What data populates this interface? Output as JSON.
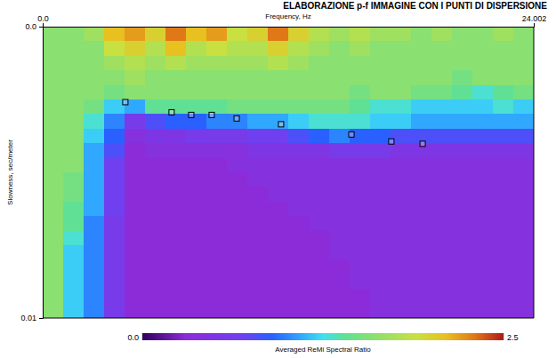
{
  "chart_data": {
    "type": "heatmap",
    "title": "ELABORAZIONE p-f IMMAGINE CON I PUNTI DI DISPERSIONE",
    "x_label": "Frequency, Hz",
    "y_label": "Slowness, sec/meter",
    "xlim": [
      0,
      24.002
    ],
    "ylim": [
      0,
      0.01
    ],
    "xticks": [
      {
        "value": 0,
        "label": "0.0"
      },
      24.002
    ],
    "yticks": [
      {
        "value": 0,
        "label": "0.0"
      },
      0.01
    ],
    "heatmap": {
      "x_edges": [
        0,
        1,
        2,
        3,
        4,
        5,
        6,
        7,
        8,
        9,
        10,
        11,
        12,
        13,
        14,
        15,
        16,
        17,
        18,
        19,
        20,
        21,
        22,
        23,
        24.002
      ],
      "y_edges": [
        0,
        0.0005,
        0.001,
        0.0015,
        0.002,
        0.0025,
        0.003,
        0.0035,
        0.004,
        0.0045,
        0.005,
        0.0055,
        0.006,
        0.0065,
        0.007,
        0.0075,
        0.008,
        0.0085,
        0.009,
        0.0095,
        0.01
      ],
      "values": [
        [
          1.6,
          1.6,
          1.7,
          2.1,
          2.2,
          2.0,
          2.3,
          2.1,
          2.2,
          1.9,
          2.0,
          2.3,
          2.0,
          1.8,
          1.7,
          1.8,
          1.7,
          1.7,
          1.6,
          1.7,
          1.6,
          1.6,
          1.7,
          1.6
        ],
        [
          1.6,
          1.6,
          1.6,
          1.9,
          2.0,
          1.8,
          2.1,
          1.8,
          1.9,
          1.8,
          1.8,
          2.0,
          1.8,
          1.7,
          1.6,
          1.7,
          1.6,
          1.6,
          1.6,
          1.6,
          1.6,
          1.6,
          1.6,
          1.6
        ],
        [
          1.6,
          1.6,
          1.6,
          1.7,
          1.8,
          1.7,
          1.8,
          1.7,
          1.7,
          1.7,
          1.7,
          1.8,
          1.7,
          1.6,
          1.6,
          1.6,
          1.6,
          1.6,
          1.6,
          1.6,
          1.6,
          1.6,
          1.6,
          1.6
        ],
        [
          1.6,
          1.6,
          1.6,
          1.6,
          1.7,
          1.6,
          1.6,
          1.6,
          1.6,
          1.6,
          1.6,
          1.6,
          1.6,
          1.6,
          1.6,
          1.6,
          1.6,
          1.6,
          1.6,
          1.6,
          1.5,
          1.6,
          1.6,
          1.6
        ],
        [
          1.6,
          1.6,
          1.6,
          1.5,
          1.6,
          1.6,
          1.6,
          1.6,
          1.6,
          1.6,
          1.6,
          1.6,
          1.6,
          1.6,
          1.6,
          1.5,
          1.6,
          1.6,
          1.5,
          1.5,
          1.4,
          1.3,
          1.4,
          1.5
        ],
        [
          1.6,
          1.6,
          1.5,
          1.2,
          1.1,
          1.4,
          1.4,
          1.4,
          1.4,
          1.5,
          1.5,
          1.5,
          1.5,
          1.5,
          1.5,
          1.4,
          1.3,
          1.3,
          1.2,
          1.2,
          1.2,
          1.2,
          1.3,
          1.2
        ],
        [
          1.6,
          1.6,
          1.3,
          1.0,
          0.6,
          0.8,
          0.9,
          0.9,
          1.0,
          1.0,
          1.1,
          1.1,
          1.2,
          1.3,
          1.3,
          1.3,
          1.2,
          1.2,
          1.1,
          1.1,
          1.1,
          1.1,
          1.1,
          1.1
        ],
        [
          1.6,
          1.6,
          1.2,
          0.9,
          0.4,
          0.5,
          0.5,
          0.6,
          0.6,
          0.6,
          0.7,
          0.7,
          0.8,
          0.9,
          1.0,
          0.9,
          0.9,
          0.8,
          0.8,
          0.8,
          0.8,
          0.8,
          0.8,
          0.8
        ],
        [
          1.6,
          1.6,
          1.1,
          0.8,
          0.3,
          0.4,
          0.4,
          0.4,
          0.4,
          0.4,
          0.5,
          0.5,
          0.5,
          0.5,
          0.6,
          0.6,
          0.6,
          0.5,
          0.5,
          0.5,
          0.5,
          0.5,
          0.5,
          0.5
        ],
        [
          1.6,
          1.6,
          1.1,
          0.7,
          0.3,
          0.3,
          0.3,
          0.3,
          0.3,
          0.4,
          0.4,
          0.4,
          0.4,
          0.4,
          0.4,
          0.4,
          0.4,
          0.4,
          0.4,
          0.4,
          0.4,
          0.4,
          0.4,
          0.4
        ],
        [
          1.6,
          1.5,
          1.1,
          0.7,
          0.3,
          0.3,
          0.3,
          0.3,
          0.3,
          0.3,
          0.4,
          0.4,
          0.4,
          0.4,
          0.4,
          0.4,
          0.4,
          0.4,
          0.4,
          0.4,
          0.4,
          0.4,
          0.4,
          0.4
        ],
        [
          1.6,
          1.5,
          1.1,
          0.7,
          0.3,
          0.3,
          0.3,
          0.3,
          0.3,
          0.3,
          0.3,
          0.4,
          0.4,
          0.4,
          0.4,
          0.4,
          0.4,
          0.4,
          0.4,
          0.4,
          0.4,
          0.4,
          0.4,
          0.4
        ],
        [
          1.6,
          1.4,
          1.1,
          0.7,
          0.3,
          0.3,
          0.3,
          0.3,
          0.3,
          0.3,
          0.3,
          0.3,
          0.4,
          0.4,
          0.4,
          0.4,
          0.4,
          0.4,
          0.4,
          0.4,
          0.4,
          0.4,
          0.4,
          0.4
        ],
        [
          1.6,
          1.4,
          1.0,
          0.6,
          0.3,
          0.3,
          0.3,
          0.3,
          0.3,
          0.3,
          0.3,
          0.3,
          0.3,
          0.4,
          0.4,
          0.4,
          0.4,
          0.4,
          0.4,
          0.4,
          0.4,
          0.4,
          0.4,
          0.4
        ],
        [
          1.6,
          1.3,
          1.0,
          0.6,
          0.3,
          0.3,
          0.3,
          0.3,
          0.3,
          0.3,
          0.3,
          0.3,
          0.3,
          0.3,
          0.4,
          0.4,
          0.4,
          0.4,
          0.4,
          0.4,
          0.4,
          0.4,
          0.4,
          0.4
        ],
        [
          1.6,
          1.2,
          1.0,
          0.6,
          0.3,
          0.3,
          0.3,
          0.3,
          0.3,
          0.3,
          0.3,
          0.3,
          0.3,
          0.3,
          0.4,
          0.4,
          0.4,
          0.4,
          0.4,
          0.4,
          0.4,
          0.4,
          0.4,
          0.4
        ],
        [
          1.6,
          1.2,
          1.0,
          0.6,
          0.3,
          0.3,
          0.3,
          0.3,
          0.3,
          0.3,
          0.3,
          0.3,
          0.3,
          0.3,
          0.3,
          0.4,
          0.4,
          0.4,
          0.4,
          0.4,
          0.4,
          0.4,
          0.4,
          0.4
        ],
        [
          1.6,
          1.2,
          1.0,
          0.6,
          0.3,
          0.3,
          0.3,
          0.3,
          0.3,
          0.3,
          0.3,
          0.3,
          0.3,
          0.3,
          0.3,
          0.4,
          0.4,
          0.4,
          0.4,
          0.4,
          0.4,
          0.4,
          0.4,
          0.4
        ],
        [
          1.6,
          1.2,
          1.0,
          0.6,
          0.3,
          0.3,
          0.3,
          0.3,
          0.3,
          0.3,
          0.3,
          0.3,
          0.3,
          0.3,
          0.3,
          0.3,
          0.4,
          0.4,
          0.4,
          0.4,
          0.4,
          0.4,
          0.4,
          0.4
        ],
        [
          1.6,
          1.2,
          1.0,
          0.6,
          0.3,
          0.3,
          0.3,
          0.3,
          0.3,
          0.3,
          0.3,
          0.3,
          0.3,
          0.3,
          0.3,
          0.3,
          0.4,
          0.4,
          0.4,
          0.4,
          0.4,
          0.4,
          0.4,
          0.4
        ]
      ]
    },
    "colorbar": {
      "range": [
        0,
        2.5
      ],
      "ticks": [
        {
          "value": 0,
          "label": "0.0"
        },
        2.5
      ],
      "label": "Averaged ReMi Spectral Ratio"
    },
    "series": [
      {
        "type": "scatter",
        "marker": "square",
        "color": "#000000",
        "x": [
          4.04,
          6.3,
          7.26,
          8.26,
          9.48,
          11.65,
          15.09,
          17.04,
          18.57
        ],
        "values": [
          0.00259,
          0.00294,
          0.00303,
          0.00303,
          0.00315,
          0.00335,
          0.0037,
          0.00394,
          0.00402
        ]
      }
    ]
  }
}
